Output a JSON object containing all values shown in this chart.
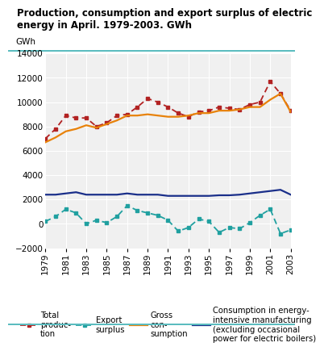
{
  "title": "Production, consumption and export surplus of electric\nenergy in April. 1979-2003. GWh",
  "ylabel": "GWh",
  "years": [
    1979,
    1980,
    1981,
    1982,
    1983,
    1984,
    1985,
    1986,
    1987,
    1988,
    1989,
    1990,
    1991,
    1992,
    1993,
    1994,
    1995,
    1996,
    1997,
    1998,
    1999,
    2000,
    2001,
    2002,
    2003
  ],
  "total_production": [
    7000,
    7800,
    8900,
    8700,
    8700,
    8000,
    8300,
    8900,
    9000,
    9600,
    10300,
    10000,
    9600,
    9100,
    8800,
    9200,
    9300,
    9600,
    9500,
    9400,
    9800,
    10000,
    11700,
    10700,
    9300
  ],
  "export_surplus": [
    200,
    600,
    1200,
    900,
    0,
    300,
    100,
    600,
    1500,
    1100,
    900,
    700,
    300,
    -600,
    -300,
    400,
    200,
    -700,
    -300,
    -400,
    100,
    700,
    1200,
    -800,
    -500
  ],
  "gross_consumption": [
    6700,
    7100,
    7600,
    7800,
    8100,
    7900,
    8200,
    8500,
    8900,
    8900,
    9000,
    8900,
    8800,
    8800,
    8900,
    9100,
    9100,
    9300,
    9300,
    9400,
    9600,
    9600,
    10200,
    10700,
    9200
  ],
  "energy_intensive": [
    2400,
    2400,
    2500,
    2600,
    2400,
    2400,
    2400,
    2400,
    2500,
    2400,
    2400,
    2400,
    2300,
    2300,
    2300,
    2300,
    2300,
    2350,
    2350,
    2400,
    2500,
    2600,
    2700,
    2800,
    2400
  ],
  "colors": {
    "total_production": "#b22222",
    "export_surplus": "#20a0a0",
    "gross_consumption": "#e8820a",
    "energy_intensive": "#1a2f8a"
  },
  "ylim": [
    -2000,
    14000
  ],
  "yticks": [
    -2000,
    0,
    2000,
    4000,
    6000,
    8000,
    10000,
    12000,
    14000
  ],
  "xtick_labels": [
    1979,
    1981,
    1983,
    1985,
    1987,
    1989,
    1991,
    1993,
    1995,
    1997,
    1999,
    2001,
    2003
  ],
  "bg_color": "#f0f0f0",
  "title_fontsize": 8.5,
  "axis_fontsize": 7.5,
  "legend_fontsize": 7.2,
  "teal_bar_color": "#5bbcbf"
}
